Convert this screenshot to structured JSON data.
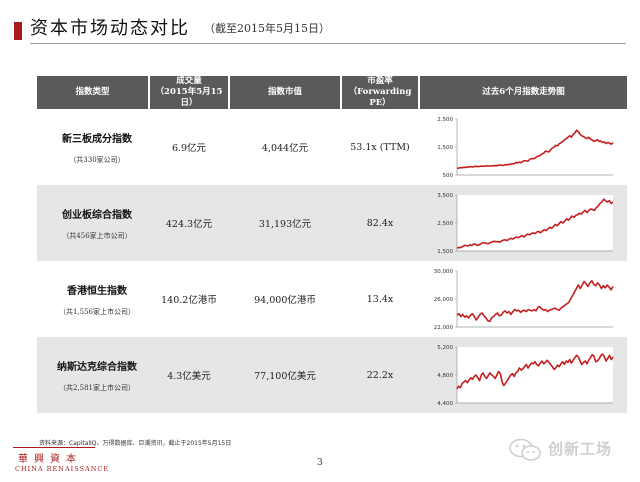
{
  "title": "资本市场动态对比",
  "subtitle": "（截至2015年5月15日）",
  "table": {
    "headers": [
      {
        "line1": "指数类型",
        "line2": ""
      },
      {
        "line1": "成交量",
        "line2": "（2015年5月15日）"
      },
      {
        "line1": "指数市值",
        "line2": ""
      },
      {
        "line1": "市盈率",
        "line2": "（Forwarding PE）"
      },
      {
        "line1": "过去6个月指数走势图",
        "line2": ""
      }
    ],
    "rows": [
      {
        "name": "新三板成分指数",
        "count": "（共330家公司）",
        "volume": "6.9亿元",
        "market_cap": "4,044亿元",
        "pe": "53.1x (TTM)",
        "chart_ticks": [
          "2,500",
          "1,500",
          "500"
        ],
        "color": "#c41e1e"
      },
      {
        "name": "创业板综合指数",
        "count": "（共456家上市公司）",
        "volume": "424.3亿元",
        "market_cap": "31,193亿元",
        "pe": "82.4x",
        "chart_ticks": [
          "3,500",
          "2,500",
          "1,500"
        ],
        "color": "#c41e1e"
      },
      {
        "name": "香港恒生指数",
        "count": "（共1,556家上市公司）",
        "volume": "140.2亿港币",
        "market_cap": "94,000亿港币",
        "pe": "13.4x",
        "chart_ticks": [
          "30,000",
          "26,000",
          "22,000"
        ],
        "color": "#c41e1e"
      },
      {
        "name": "纳斯达克综合指数",
        "count": "（共2,581家上市公司）",
        "volume": "4.3亿美元",
        "market_cap": "77,100亿美元",
        "pe": "22.2x",
        "chart_ticks": [
          "5,200",
          "4,800",
          "4,400"
        ],
        "color": "#c41e1e"
      }
    ]
  },
  "chart_data": [
    {
      "type": "line",
      "name": "新三板成分指数",
      "ylim": [
        500,
        2500
      ],
      "yticks": [
        2500,
        1500,
        500
      ],
      "values": [
        740,
        745,
        760,
        760,
        775,
        770,
        790,
        790,
        800,
        785,
        800,
        810,
        800,
        805,
        820,
        810,
        815,
        830,
        820,
        820,
        825,
        830,
        835,
        830,
        850,
        860,
        840,
        850,
        870,
        860,
        880,
        890,
        900,
        905,
        950,
        930,
        960,
        940,
        990,
        1010,
        1000,
        1000,
        1060,
        1090,
        1080,
        1100,
        1150,
        1180,
        1200,
        1250,
        1280,
        1350,
        1340,
        1320,
        1400,
        1460,
        1500,
        1560,
        1540,
        1620,
        1650,
        1700,
        1750,
        1800,
        1850,
        1900,
        1850,
        1950,
        2000,
        2100,
        2050,
        1950,
        1900,
        1870,
        1830,
        1800,
        1850,
        1780,
        1750,
        1700,
        1720,
        1760,
        1700,
        1710,
        1660,
        1680,
        1620,
        1660,
        1640,
        1600,
        1650
      ]
    },
    {
      "type": "line",
      "name": "创业板综合指数",
      "ylim": [
        1500,
        3500
      ],
      "yticks": [
        3500,
        2500,
        1500
      ],
      "values": [
        1600,
        1630,
        1620,
        1660,
        1700,
        1690,
        1680,
        1720,
        1700,
        1750,
        1740,
        1700,
        1720,
        1760,
        1800,
        1790,
        1770,
        1760,
        1800,
        1820,
        1850,
        1830,
        1840,
        1810,
        1860,
        1890,
        1900,
        1870,
        1920,
        1950,
        1930,
        1960,
        2000,
        1980,
        2010,
        2050,
        2000,
        2060,
        2100,
        2080,
        2120,
        2150,
        2120,
        2180,
        2200,
        2150,
        2210,
        2260,
        2230,
        2290,
        2350,
        2310,
        2380,
        2450,
        2400,
        2480,
        2550,
        2500,
        2560,
        2650,
        2600,
        2680,
        2750,
        2700,
        2780,
        2800,
        2850,
        2820,
        2900,
        2950,
        2870,
        2950,
        3000,
        2980,
        2950,
        3050,
        3100,
        3200,
        3250,
        3350,
        3300,
        3250,
        3300,
        3200,
        3250
      ]
    },
    {
      "type": "line",
      "name": "香港恒生指数",
      "ylim": [
        22000,
        30000
      ],
      "yticks": [
        30000,
        26000,
        22000
      ],
      "values": [
        23700,
        23900,
        23500,
        23800,
        23400,
        23600,
        23300,
        23700,
        23900,
        23500,
        23000,
        23400,
        23800,
        24000,
        23600,
        23300,
        22900,
        22800,
        23300,
        23500,
        23800,
        24000,
        23600,
        23700,
        24100,
        24300,
        24000,
        24200,
        23800,
        24200,
        24500,
        24300,
        24400,
        24100,
        24300,
        24400,
        24200,
        24500,
        24400,
        24300,
        24500,
        24300,
        24800,
        24900,
        24600,
        24400,
        24500,
        24200,
        24400,
        24500,
        24600,
        24700,
        24500,
        24400,
        24700,
        24900,
        25100,
        25300,
        25500,
        26000,
        26500,
        27000,
        27500,
        28000,
        27500,
        28000,
        28500,
        28200,
        27800,
        28300,
        28600,
        28100,
        27900,
        28300,
        28000,
        27500,
        27900,
        27600,
        28000,
        27700,
        27300,
        27800
      ]
    },
    {
      "type": "line",
      "name": "纳斯达克综合指数",
      "ylim": [
        4400,
        5200
      ],
      "yticks": [
        5200,
        4800,
        4400
      ],
      "values": [
        4600,
        4640,
        4620,
        4680,
        4700,
        4720,
        4690,
        4730,
        4760,
        4740,
        4780,
        4800,
        4760,
        4720,
        4800,
        4830,
        4780,
        4750,
        4790,
        4830,
        4800,
        4780,
        4750,
        4800,
        4850,
        4820,
        4700,
        4650,
        4680,
        4720,
        4760,
        4800,
        4820,
        4780,
        4830,
        4850,
        4900,
        4870,
        4890,
        4920,
        4950,
        4900,
        4940,
        4970,
        4960,
        4990,
        4950,
        4930,
        4970,
        5000,
        4960,
        4980,
        5010,
        4980,
        4950,
        4920,
        4880,
        4900,
        4940,
        4920,
        4960,
        4990,
        4950,
        5000,
        4980,
        5020,
        4970,
        5010,
        5050,
        5080,
        5060,
        5000,
        4950,
        4980,
        5000,
        4960,
        5010,
        5050,
        5090,
        5070,
        4990,
        5000,
        5030,
        5080,
        5100,
        5060,
        5000,
        5040,
        5080,
        5020,
        5060
      ]
    }
  ],
  "footnote": "资料来源：CapitalIQ、万得数据库、巨潮资讯，截止于2015年5月15日",
  "logo": {
    "cn": "華興資本",
    "en": "CHINA RENAISSANCE"
  },
  "page_number": "3",
  "watermark": "创新工场",
  "colors": {
    "accent": "#a71d1d",
    "header_bg": "#5a5a5a",
    "band_grey": "#e6e6e6",
    "line": "#c41e1e"
  }
}
